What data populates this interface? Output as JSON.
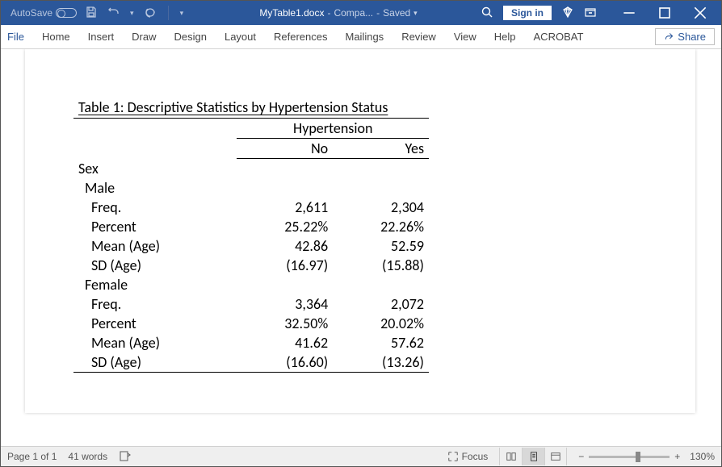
{
  "titlebar": {
    "autosave_label": "AutoSave",
    "doc_name": "MyTable1.docx",
    "separator": " - ",
    "compat": "Compa...",
    "saved": "Saved",
    "signin": "Sign in"
  },
  "ribbon": {
    "tabs": [
      "File",
      "Home",
      "Insert",
      "Draw",
      "Design",
      "Layout",
      "References",
      "Mailings",
      "Review",
      "View",
      "Help",
      "ACROBAT"
    ],
    "share": "Share"
  },
  "table": {
    "caption": "Table 1: Descriptive Statistics by Hypertension Status",
    "span_header": "Hypertension",
    "columns": [
      "No",
      "Yes"
    ],
    "blocks": [
      {
        "type": "group0",
        "label": "Sex"
      },
      {
        "type": "group1",
        "label": "Male"
      },
      {
        "type": "row",
        "label": "Freq.",
        "values": [
          "2,611",
          "2,304"
        ]
      },
      {
        "type": "row",
        "label": "Percent",
        "values": [
          "25.22%",
          "22.26%"
        ]
      },
      {
        "type": "row",
        "label": "Mean (Age)",
        "values": [
          "42.86",
          "52.59"
        ]
      },
      {
        "type": "row",
        "label": "SD (Age)",
        "values": [
          "(16.97)",
          "(15.88)"
        ]
      },
      {
        "type": "group1",
        "label": "Female"
      },
      {
        "type": "row",
        "label": "Freq.",
        "values": [
          "3,364",
          "2,072"
        ]
      },
      {
        "type": "row",
        "label": "Percent",
        "values": [
          "32.50%",
          "20.02%"
        ]
      },
      {
        "type": "row",
        "label": "Mean (Age)",
        "values": [
          "41.62",
          "57.62"
        ]
      },
      {
        "type": "row",
        "label": "SD (Age)",
        "values": [
          "(16.60)",
          "(13.26)"
        ],
        "last": true
      }
    ]
  },
  "statusbar": {
    "page": "Page 1 of 1",
    "words": "41 words",
    "focus": "Focus",
    "zoom": "130%"
  },
  "colors": {
    "brand": "#2b579a",
    "brand_dim": "#b8c6de",
    "border": "#d4d4d4",
    "text": "#444444",
    "black": "#000000"
  }
}
